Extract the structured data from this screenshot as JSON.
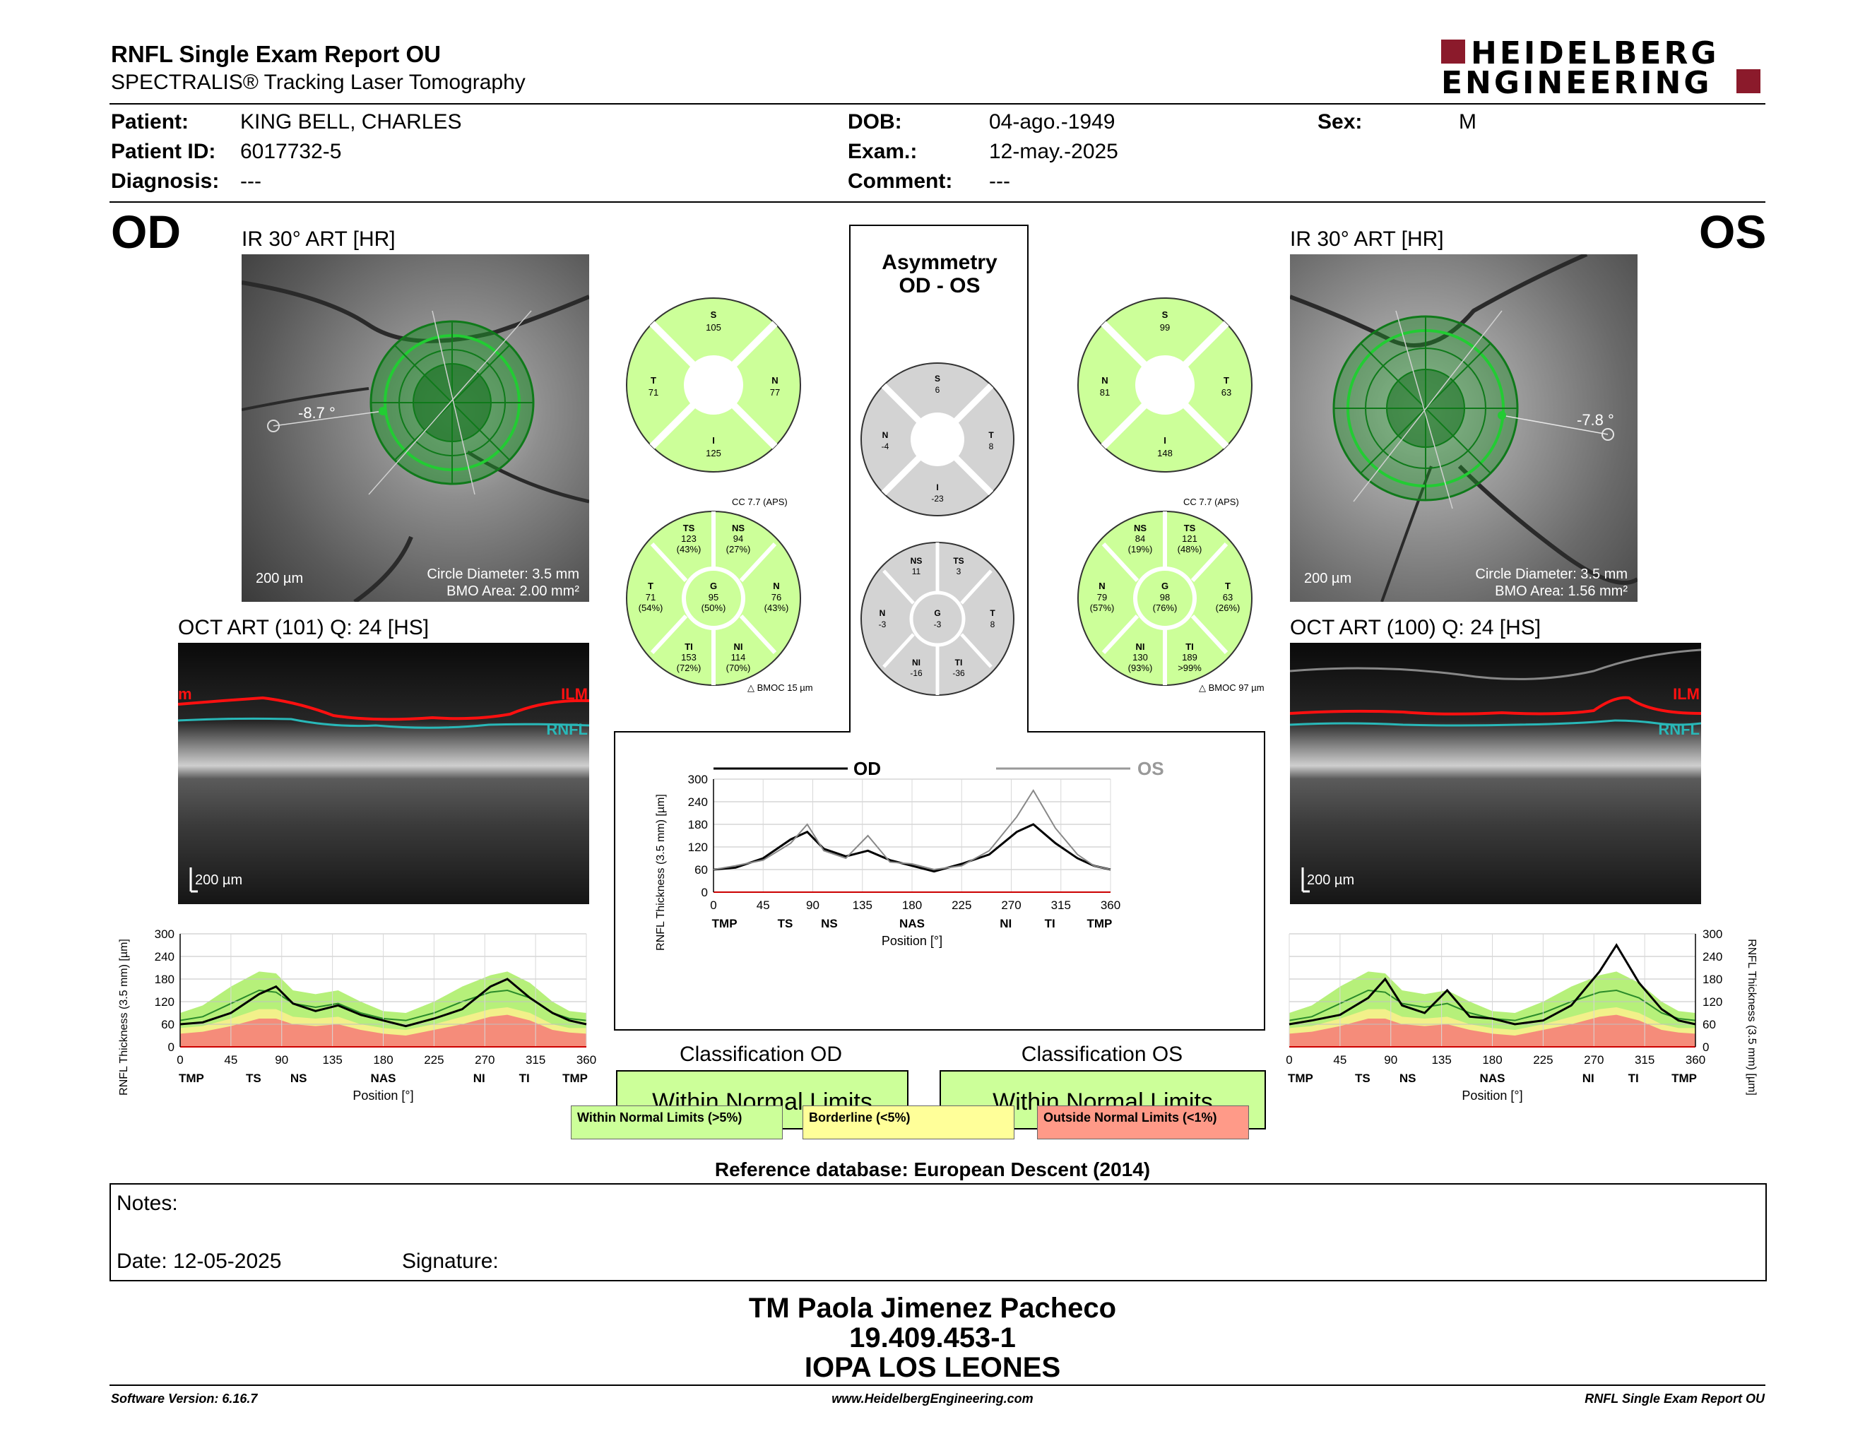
{
  "header": {
    "title": "RNFL Single Exam Report OU",
    "subtitle": "SPECTRALIS® Tracking Laser Tomography",
    "logo_line1": "HEIDELBERG",
    "logo_line2": "ENGINEERING"
  },
  "patient": {
    "patient_label": "Patient:",
    "patient_value": "KING BELL, CHARLES",
    "id_label": "Patient ID:",
    "id_value": "6017732-5",
    "diagnosis_label": "Diagnosis:",
    "diagnosis_value": "---",
    "dob_label": "DOB:",
    "dob_value": "04-ago.-1949",
    "exam_label": "Exam.:",
    "exam_value": "12-may.-2025",
    "comment_label": "Comment:",
    "comment_value": "---",
    "sex_label": "Sex:",
    "sex_value": "M"
  },
  "od": {
    "eye_label": "OD",
    "ir_label": "IR 30° ART [HR]",
    "angle": "-8.7 °",
    "scale": "200 µm",
    "circle_diameter": "Circle Diameter: 3.5 mm",
    "bmo_area": "BMO Area: 2.00 mm²",
    "oct_label": "OCT ART (101) Q: 24 [HS]",
    "oct_scale": "200 µm",
    "ilm": "ILM",
    "rnfl": "RNFL",
    "quadrants": {
      "S": "105",
      "N": "77",
      "I": "125",
      "T": "71"
    },
    "sectors": {
      "cc": "CC 7.7 (APS)",
      "TS": "123",
      "TS_p": "(43%)",
      "NS": "94",
      "NS_p": "(27%)",
      "T": "71",
      "T_p": "(54%)",
      "G": "95",
      "G_p": "(50%)",
      "N": "76",
      "N_p": "(43%)",
      "TI": "153",
      "TI_p": "(72%)",
      "NI": "114",
      "NI_p": "(70%)",
      "bmoc": "BMOC 15 µm"
    },
    "classification_title": "Classification OD",
    "classification": "Within Normal Limits"
  },
  "os": {
    "eye_label": "OS",
    "ir_label": "IR 30° ART [HR]",
    "angle": "-7.8 °",
    "scale": "200 µm",
    "circle_diameter": "Circle Diameter: 3.5 mm",
    "bmo_area": "BMO Area: 1.56 mm²",
    "oct_label": "OCT ART (100) Q: 24 [HS]",
    "oct_scale": "200 µm",
    "ilm": "ILM",
    "rnfl": "RNFL",
    "quadrants": {
      "S": "99",
      "N": "81",
      "I": "148",
      "T": "63"
    },
    "sectors": {
      "cc": "CC 7.7 (APS)",
      "NS": "84",
      "NS_p": "(19%)",
      "TS": "121",
      "TS_p": "(48%)",
      "N": "79",
      "N_p": "(57%)",
      "G": "98",
      "G_p": "(76%)",
      "T": "63",
      "T_p": "(26%)",
      "NI": "130",
      "NI_p": "(93%)",
      "TI": "189",
      "TI_p": ">99%",
      "bmoc": "BMOC 97 µm"
    },
    "classification_title": "Classification OS",
    "classification": "Within Normal Limits"
  },
  "asymmetry": {
    "title_line1": "Asymmetry",
    "title_line2": "OD - OS",
    "quadrants": {
      "S": "6",
      "N": "-4",
      "T": "8",
      "I": "-23"
    },
    "sectors": {
      "NS": "11",
      "TS": "3",
      "N": "-3",
      "G": "-3",
      "T": "8",
      "NI": "-16",
      "TI": "-36"
    },
    "legend_od": "OD",
    "legend_os": "OS"
  },
  "legend": {
    "wnl": "Within Normal Limits (>5%)",
    "bl": "Borderline (<5%)",
    "onl": "Outside Normal Limits (<1%)"
  },
  "reference": "Reference database: European Descent (2014)",
  "notes": {
    "notes_label": "Notes:",
    "date_label": "Date: 12-05-2025",
    "signature_label": "Signature:"
  },
  "signoff": {
    "name": "TM Paola Jimenez Pacheco",
    "rut": "19.409.453-1",
    "clinic": "IOPA LOS LEONES"
  },
  "footer": {
    "version": "Software Version: 6.16.7",
    "url": "www.HeidelbergEngineering.com",
    "report": "RNFL Single Exam Report OU"
  },
  "chart_data": [
    {
      "type": "line",
      "name": "od_profile",
      "ylabel": "RNFL Thickness (3.5 mm) [µm]",
      "xlabel": "Position [°]",
      "ylim": [
        0,
        300
      ],
      "xlim": [
        0,
        360
      ],
      "yticks": [
        0,
        60,
        120,
        180,
        240,
        300
      ],
      "xticks": [
        0,
        45,
        90,
        135,
        180,
        225,
        270,
        315,
        360
      ],
      "sector_labels": [
        "TMP",
        "TS",
        "NS",
        "NAS",
        "NI",
        "TI",
        "TMP"
      ],
      "sector_positions": [
        10,
        65,
        105,
        180,
        265,
        305,
        350
      ],
      "x": [
        0,
        20,
        45,
        70,
        85,
        100,
        120,
        140,
        160,
        180,
        200,
        225,
        250,
        275,
        290,
        310,
        330,
        345,
        360
      ],
      "series": [
        {
          "values": [
            60,
            65,
            90,
            140,
            160,
            115,
            95,
            110,
            85,
            70,
            55,
            75,
            100,
            160,
            180,
            130,
            90,
            70,
            60
          ]
        }
      ],
      "normal_band": {
        "upper": [
          90,
          110,
          160,
          200,
          195,
          150,
          140,
          150,
          120,
          95,
          90,
          120,
          160,
          190,
          200,
          170,
          120,
          95,
          90
        ],
        "mean": [
          70,
          80,
          115,
          150,
          145,
          115,
          105,
          115,
          90,
          75,
          70,
          90,
          120,
          145,
          150,
          130,
          90,
          75,
          70
        ],
        "borderline": [
          50,
          55,
          75,
          100,
          100,
          80,
          75,
          80,
          60,
          50,
          45,
          60,
          80,
          100,
          105,
          90,
          60,
          50,
          50
        ],
        "outside": [
          35,
          40,
          55,
          75,
          75,
          60,
          55,
          60,
          45,
          35,
          30,
          45,
          60,
          80,
          85,
          70,
          45,
          38,
          35
        ]
      }
    },
    {
      "type": "line",
      "name": "asymmetry_profile",
      "ylabel": "RNFL Thickness (3.5 mm) [µm]",
      "xlabel": "Position [°]",
      "ylim": [
        0,
        300
      ],
      "xlim": [
        0,
        360
      ],
      "yticks": [
        0,
        60,
        120,
        180,
        240,
        300
      ],
      "xticks": [
        0,
        45,
        90,
        135,
        180,
        225,
        270,
        315,
        360
      ],
      "sector_labels": [
        "TMP",
        "TS",
        "NS",
        "NAS",
        "NI",
        "TI",
        "TMP"
      ],
      "sector_positions": [
        10,
        65,
        105,
        180,
        265,
        305,
        350
      ],
      "x": [
        0,
        20,
        45,
        70,
        85,
        100,
        120,
        140,
        160,
        180,
        200,
        225,
        250,
        275,
        290,
        310,
        330,
        345,
        360
      ],
      "series": [
        {
          "name": "OD",
          "values": [
            60,
            65,
            90,
            140,
            160,
            115,
            95,
            110,
            85,
            70,
            55,
            75,
            100,
            160,
            180,
            130,
            90,
            70,
            60
          ]
        },
        {
          "name": "OS",
          "values": [
            60,
            70,
            85,
            130,
            180,
            110,
            90,
            150,
            80,
            75,
            60,
            70,
            110,
            200,
            270,
            170,
            100,
            70,
            60
          ]
        }
      ]
    },
    {
      "type": "line",
      "name": "os_profile",
      "ylabel": "RNFL Thickness (3.5 mm) [µm]",
      "xlabel": "Position [°]",
      "ylim": [
        0,
        300
      ],
      "xlim": [
        0,
        360
      ],
      "yticks": [
        0,
        60,
        120,
        180,
        240,
        300
      ],
      "xticks": [
        0,
        45,
        90,
        135,
        180,
        225,
        270,
        315,
        360
      ],
      "sector_labels": [
        "TMP",
        "TS",
        "NS",
        "NAS",
        "NI",
        "TI",
        "TMP"
      ],
      "sector_positions": [
        10,
        65,
        105,
        180,
        265,
        305,
        350
      ],
      "x": [
        0,
        20,
        45,
        70,
        85,
        100,
        120,
        140,
        160,
        180,
        200,
        225,
        250,
        275,
        290,
        310,
        330,
        345,
        360
      ],
      "series": [
        {
          "values": [
            60,
            70,
            85,
            130,
            180,
            110,
            90,
            150,
            80,
            75,
            60,
            70,
            110,
            200,
            270,
            170,
            100,
            70,
            60
          ]
        }
      ],
      "normal_band": {
        "upper": [
          90,
          110,
          160,
          200,
          195,
          150,
          140,
          150,
          120,
          95,
          90,
          120,
          160,
          190,
          200,
          170,
          120,
          95,
          90
        ],
        "mean": [
          70,
          80,
          115,
          150,
          145,
          115,
          105,
          115,
          90,
          75,
          70,
          90,
          120,
          145,
          150,
          130,
          90,
          75,
          70
        ],
        "borderline": [
          50,
          55,
          75,
          100,
          100,
          80,
          75,
          80,
          60,
          50,
          45,
          60,
          80,
          100,
          105,
          90,
          60,
          50,
          50
        ],
        "outside": [
          35,
          40,
          55,
          75,
          75,
          60,
          55,
          60,
          45,
          35,
          30,
          45,
          60,
          80,
          85,
          70,
          45,
          38,
          35
        ]
      }
    }
  ]
}
